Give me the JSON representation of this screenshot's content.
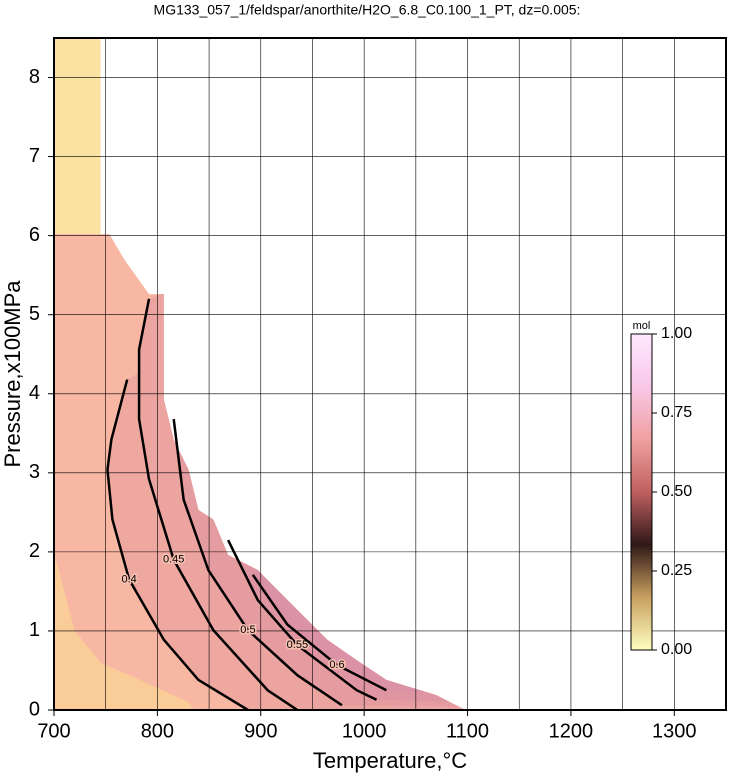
{
  "chart_data": {
    "type": "contour",
    "title": "MG133_057_1/feldspar/anorthite/H2O_6.8_C0.100_1_PT, dz=0.005:",
    "xlabel": "Temperature,°C",
    "ylabel": "Pressure,x100MPa",
    "xlim": [
      700,
      1350
    ],
    "ylim": [
      0,
      8.5
    ],
    "xticks": [
      700,
      800,
      900,
      1000,
      1100,
      1200,
      1300
    ],
    "xgrid": [
      750,
      800,
      850,
      900,
      950,
      1000,
      1050,
      1100,
      1150,
      1200,
      1250,
      1300
    ],
    "yticks": [
      0,
      1,
      2,
      3,
      4,
      5,
      6,
      7,
      8
    ],
    "grid": true,
    "fills": [
      {
        "color": "#f7b7a3",
        "x": [
          700,
          745,
          745,
          753.6,
          767.9,
          791.9,
          806.2,
          806.2,
          815.8,
          830.1,
          839.7,
          854.1,
          868.4,
          897.1,
          925.8,
          944.9,
          964.1,
          992.8,
          1021.5,
          1069.4,
          1098,
          700
        ],
        "y": [
          8.5,
          8.5,
          6.02,
          6.02,
          5.7,
          5.26,
          5.26,
          3.93,
          3.42,
          3.04,
          2.53,
          2.41,
          1.96,
          1.77,
          1.39,
          1.14,
          0.89,
          0.63,
          0.38,
          0.19,
          0,
          0
        ]
      },
      {
        "color": "#fbe2a2",
        "x": [
          700,
          745,
          745,
          700
        ],
        "y": [
          8.5,
          8.5,
          6.02,
          6.02
        ]
      },
      {
        "color": "#f9cc98",
        "x": [
          700,
          700,
          720,
          745,
          780,
          830,
          835
        ],
        "y": [
          0,
          2.0,
          1.0,
          0.6,
          0.4,
          0.1,
          0
        ]
      }
    ],
    "contours": [
      {
        "level": 0.4,
        "color": "#eea8a0",
        "x": [
          770.8,
          755.5,
          751.7,
          756.5,
          772.7,
          806.2,
          839.7,
          887.6
        ],
        "y": [
          4.18,
          3.42,
          3.04,
          2.41,
          1.65,
          0.89,
          0.38,
          0
        ]
      },
      {
        "level": 0.45,
        "color": "#eba4a0",
        "x": [
          791.9,
          782.3,
          782.3,
          791.9,
          815.8,
          854.1,
          906.7,
          935.4
        ],
        "y": [
          5.2,
          4.56,
          3.68,
          2.92,
          1.9,
          1.01,
          0.25,
          0
        ]
      },
      {
        "level": 0.5,
        "color": "#e59ca0",
        "x": [
          815.8,
          825.4,
          849.3,
          887.6,
          935.4,
          978.5
        ],
        "y": [
          3.68,
          2.66,
          1.77,
          1.01,
          0.44,
          0.06
        ]
      },
      {
        "level": 0.55,
        "color": "#e096a2",
        "x": [
          868.4,
          897.1,
          935.4,
          992.8,
          1012
        ],
        "y": [
          2.15,
          1.39,
          0.82,
          0.25,
          0.13
        ]
      },
      {
        "level": 0.6,
        "color": "#dc92a6",
        "x": [
          892.3,
          925.8,
          973.7,
          1021.5
        ],
        "y": [
          1.71,
          1.08,
          0.57,
          0.25
        ]
      }
    ],
    "colorbar": {
      "label": "mol",
      "lim": [
        0,
        1
      ],
      "colors": [
        "#ffffc0",
        "#c8a060",
        "#301818",
        "#c06060",
        "#f0a0a0",
        "#f8c8e8",
        "#ffe8ff"
      ],
      "ticks": [
        {
          "value": 0,
          "label": "0.00"
        },
        {
          "value": 0.25,
          "label": "0.25"
        },
        {
          "value": 0.5,
          "label": "0.50"
        },
        {
          "value": 0.75,
          "label": "0.75"
        },
        {
          "value": 1,
          "label": "1.00"
        }
      ]
    }
  }
}
